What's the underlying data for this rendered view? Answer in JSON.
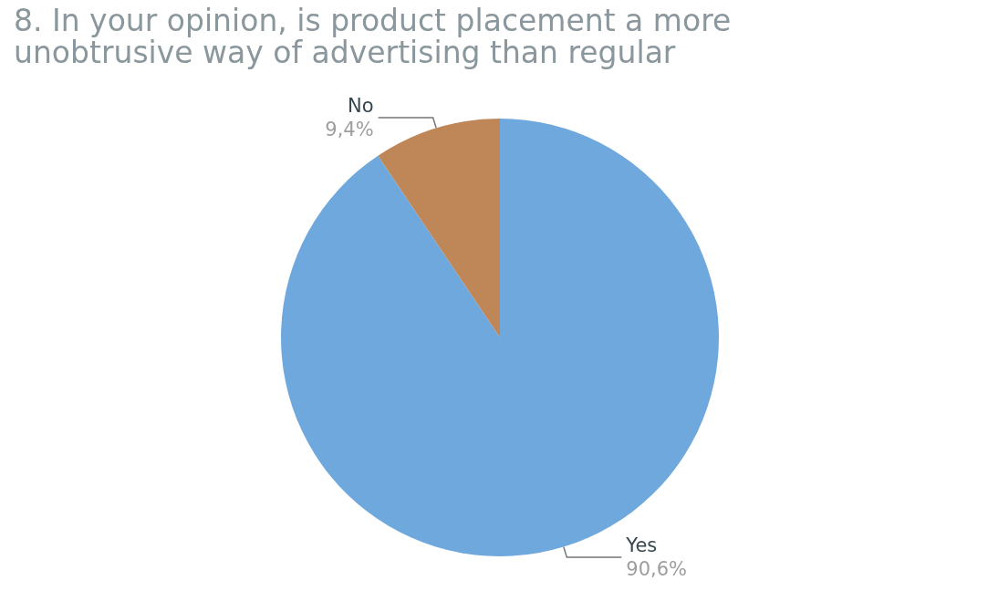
{
  "chart_data": {
    "type": "pie",
    "title": "8. In your opinion, is product placement a more\nunobtrusive way of advertising than regular",
    "categories": [
      "Yes",
      "No"
    ],
    "values": [
      90.6,
      9.4
    ],
    "value_labels": [
      "90,6%",
      "9,4%"
    ],
    "colors": [
      "#6fa8dc",
      "#bf8658"
    ],
    "legend": false
  }
}
